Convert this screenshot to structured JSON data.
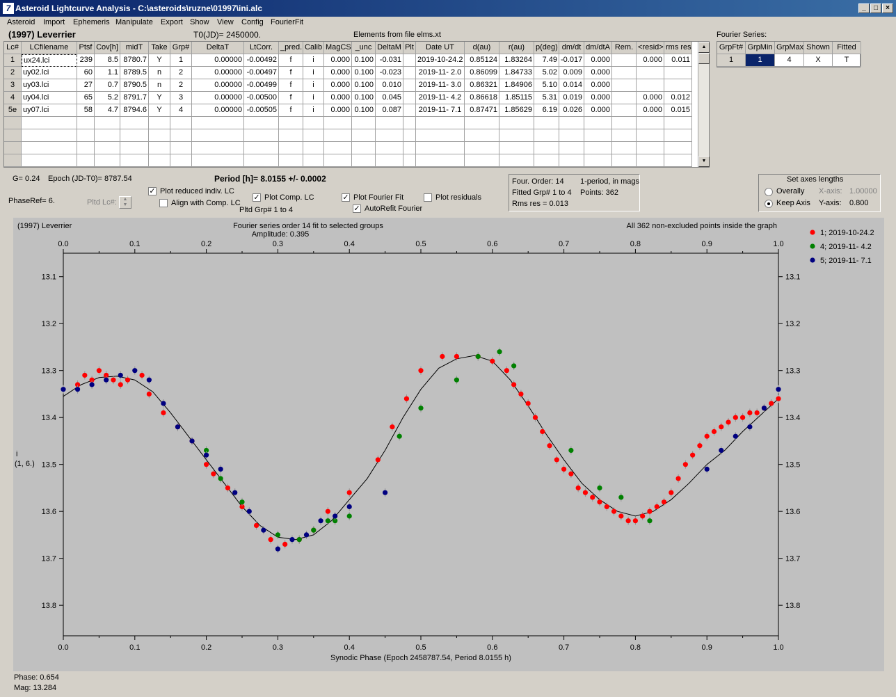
{
  "window": {
    "title": "Asteroid Lightcurve Analysis - C:\\asteroids\\ruzne\\01997\\ini.alc",
    "icon": "7"
  },
  "menu": [
    "Asteroid",
    "Import",
    "Ephemeris",
    "Manipulate",
    "Export",
    "Show",
    "View",
    "Config",
    "FourierFit"
  ],
  "header": {
    "asteroid_name": "(1997) Leverrier",
    "t0": "T0(JD)= 2450000.",
    "elements": "Elements from file elms.xt"
  },
  "lc_table": {
    "columns": [
      "Lc#",
      "LCfilename",
      "Ptsf",
      "Cov[h]",
      "midT",
      "Take",
      "Grp#",
      "DeltaT",
      "LtCorr.",
      "_pred.",
      "Calib",
      "MagCS",
      "_unc",
      "DeltaM",
      "Plt",
      "Date UT",
      "d(au)",
      "r(au)",
      "p(deg)",
      "dm/dt",
      "dm/dtA",
      "Rem.",
      "<resid>",
      "rms res"
    ],
    "rows": [
      [
        "1",
        "ux24.lci",
        "239",
        "8.5",
        "8780.7",
        "Y",
        "1",
        "0.00000",
        "-0.00492",
        "f",
        "i",
        "0.000",
        "0.100",
        "-0.031",
        "",
        "2019-10-24.2",
        "0.85124",
        "1.83264",
        "7.49",
        "-0.017",
        "0.000",
        "",
        "0.000",
        "0.011"
      ],
      [
        "2",
        "uy02.lci",
        "60",
        "1.1",
        "8789.5",
        "n",
        "2",
        "0.00000",
        "-0.00497",
        "f",
        "i",
        "0.000",
        "0.100",
        "-0.023",
        "",
        "2019-11- 2.0",
        "0.86099",
        "1.84733",
        "5.02",
        "0.009",
        "0.000",
        "",
        "",
        ""
      ],
      [
        "3",
        "uy03.lci",
        "27",
        "0.7",
        "8790.5",
        "n",
        "2",
        "0.00000",
        "-0.00499",
        "f",
        "i",
        "0.000",
        "0.100",
        "0.010",
        "",
        "2019-11- 3.0",
        "0.86321",
        "1.84906",
        "5.10",
        "0.014",
        "0.000",
        "",
        "",
        ""
      ],
      [
        "4",
        "uy04.lci",
        "65",
        "5.2",
        "8791.7",
        "Y",
        "3",
        "0.00000",
        "-0.00500",
        "f",
        "i",
        "0.000",
        "0.100",
        "0.045",
        "",
        "2019-11- 4.2",
        "0.86618",
        "1.85115",
        "5.31",
        "0.019",
        "0.000",
        "",
        "0.000",
        "0.012"
      ],
      [
        "5e",
        "uy07.lci",
        "58",
        "4.7",
        "8794.6",
        "Y",
        "4",
        "0.00000",
        "-0.00505",
        "f",
        "i",
        "0.000",
        "0.100",
        "0.087",
        "",
        "2019-11- 7.1",
        "0.87471",
        "1.85629",
        "6.19",
        "0.026",
        "0.000",
        "",
        "0.000",
        "0.015"
      ]
    ]
  },
  "fourier_panel": {
    "label": "Fourier Series:",
    "columns": [
      "GrpFt#",
      "GrpMin",
      "GrpMax",
      "Shown",
      "Fitted"
    ],
    "row": [
      "1",
      "1",
      "4",
      "X",
      "T"
    ]
  },
  "controls": {
    "g_param": "G= 0.24",
    "epoch": "Epoch (JD-T0)= 8787.54",
    "period": "Period [h]= 8.0155 +/- 0.0002",
    "phaseref": "PhaseRef= 6.",
    "pltd_lc": "Pltd Lc#:",
    "plot_reduced": "Plot reduced indiv. LC",
    "align_comp": "Align with Comp. LC",
    "plot_comp": "Plot Comp. LC",
    "pltd_grp": "Pltd Grp#  1   to   4",
    "plot_fourier": "Plot Fourier Fit",
    "autorefit": "AutoRefit Fourier",
    "plot_residuals": "Plot residuals"
  },
  "fit_info": {
    "order": "Four. Order: 14",
    "mode": "1-period, in mags",
    "fitted": "Fitted Grp# 1 to 4",
    "points": "Points: 362",
    "rms": "Rms res     = 0.013"
  },
  "axes_panel": {
    "title": "Set axes lengths",
    "overally": "Overally",
    "keep_axis": "Keep Axis",
    "x_label": "X-axis:",
    "x_value": "1.00000",
    "y_label": "Y-axis:",
    "y_value": "0.800"
  },
  "footer": {
    "phase": "Phase:  0.654",
    "mag": "Mag:    13.284"
  },
  "chart_data": {
    "type": "scatter",
    "title": "Fourier series order 14 fit to selected groups",
    "subtitle": "Amplitude: 0.395",
    "left_label": "(1997) Leverrier",
    "right_note": "All 362 non-excluded points inside the graph",
    "xlabel": "Synodic Phase (Epoch 2458787.54, Period 8.0155 h)",
    "ylabel": "i",
    "ylabel2": "(1, 6.)",
    "xlim": [
      0.0,
      1.0
    ],
    "ylim": [
      13.05,
      13.865
    ],
    "y_inverted": true,
    "xticks": [
      "0.0",
      "0.1",
      "0.2",
      "0.3",
      "0.4",
      "0.5",
      "0.6",
      "0.7",
      "0.8",
      "0.9",
      "1.0"
    ],
    "yticks": [
      "13.1",
      "13.2",
      "13.3",
      "13.4",
      "13.5",
      "13.6",
      "13.7",
      "13.8"
    ],
    "fourier_fit": {
      "x": [
        0.0,
        0.025,
        0.05,
        0.075,
        0.1,
        0.125,
        0.15,
        0.175,
        0.2,
        0.225,
        0.25,
        0.275,
        0.3,
        0.325,
        0.35,
        0.375,
        0.4,
        0.425,
        0.45,
        0.475,
        0.5,
        0.525,
        0.55,
        0.575,
        0.6,
        0.625,
        0.65,
        0.675,
        0.7,
        0.725,
        0.75,
        0.775,
        0.8,
        0.825,
        0.85,
        0.875,
        0.9,
        0.925,
        0.95,
        0.975,
        1.0
      ],
      "y": [
        13.355,
        13.33,
        13.315,
        13.312,
        13.32,
        13.345,
        13.39,
        13.44,
        13.49,
        13.54,
        13.59,
        13.63,
        13.655,
        13.66,
        13.65,
        13.62,
        13.575,
        13.53,
        13.47,
        13.4,
        13.34,
        13.295,
        13.275,
        13.268,
        13.28,
        13.32,
        13.375,
        13.435,
        13.49,
        13.54,
        13.575,
        13.6,
        13.61,
        13.6,
        13.575,
        13.54,
        13.5,
        13.47,
        13.43,
        13.395,
        13.36
      ]
    },
    "series": [
      {
        "name": "1; 2019-10-24.2",
        "color": "#ff0000",
        "x": [
          0.02,
          0.03,
          0.04,
          0.05,
          0.06,
          0.07,
          0.08,
          0.09,
          0.11,
          0.12,
          0.14,
          0.16,
          0.18,
          0.2,
          0.21,
          0.23,
          0.25,
          0.27,
          0.29,
          0.31,
          0.33,
          0.35,
          0.37,
          0.4,
          0.44,
          0.46,
          0.48,
          0.5,
          0.53,
          0.55,
          0.58,
          0.6,
          0.62,
          0.63,
          0.64,
          0.65,
          0.66,
          0.67,
          0.68,
          0.69,
          0.7,
          0.71,
          0.72,
          0.73,
          0.74,
          0.75,
          0.76,
          0.77,
          0.78,
          0.79,
          0.8,
          0.81,
          0.82,
          0.83,
          0.84,
          0.85,
          0.86,
          0.87,
          0.88,
          0.89,
          0.9,
          0.91,
          0.92,
          0.93,
          0.94,
          0.95,
          0.96,
          0.97,
          0.98,
          0.99,
          1.0
        ],
        "y": [
          13.33,
          13.31,
          13.32,
          13.3,
          13.31,
          13.32,
          13.33,
          13.32,
          13.31,
          13.35,
          13.39,
          13.42,
          13.45,
          13.5,
          13.52,
          13.55,
          13.59,
          13.63,
          13.66,
          13.67,
          13.66,
          13.64,
          13.6,
          13.56,
          13.49,
          13.42,
          13.36,
          13.3,
          13.27,
          13.27,
          13.27,
          13.28,
          13.3,
          13.33,
          13.35,
          13.37,
          13.4,
          13.43,
          13.46,
          13.49,
          13.51,
          13.52,
          13.55,
          13.56,
          13.57,
          13.58,
          13.59,
          13.6,
          13.61,
          13.62,
          13.62,
          13.61,
          13.6,
          13.59,
          13.58,
          13.56,
          13.53,
          13.5,
          13.48,
          13.46,
          13.44,
          13.43,
          13.42,
          13.41,
          13.4,
          13.4,
          13.39,
          13.39,
          13.38,
          13.37,
          13.36
        ]
      },
      {
        "name": "4; 2019-11- 4.2",
        "color": "#008000",
        "x": [
          0.2,
          0.22,
          0.25,
          0.3,
          0.33,
          0.35,
          0.37,
          0.38,
          0.4,
          0.47,
          0.5,
          0.55,
          0.58,
          0.61,
          0.63,
          0.71,
          0.75,
          0.78,
          0.82
        ],
        "y": [
          13.47,
          13.53,
          13.58,
          13.65,
          13.66,
          13.64,
          13.62,
          13.62,
          13.61,
          13.44,
          13.38,
          13.32,
          13.27,
          13.26,
          13.29,
          13.47,
          13.55,
          13.57,
          13.62
        ]
      },
      {
        "name": "5; 2019-11- 7.1",
        "color": "#000080",
        "x": [
          0.0,
          0.02,
          0.04,
          0.06,
          0.08,
          0.1,
          0.12,
          0.14,
          0.16,
          0.18,
          0.2,
          0.22,
          0.24,
          0.26,
          0.28,
          0.3,
          0.32,
          0.34,
          0.36,
          0.38,
          0.4,
          0.45,
          0.9,
          0.92,
          0.94,
          0.96,
          0.98,
          1.0
        ],
        "y": [
          13.34,
          13.34,
          13.33,
          13.32,
          13.31,
          13.3,
          13.32,
          13.37,
          13.42,
          13.45,
          13.48,
          13.51,
          13.56,
          13.6,
          13.64,
          13.68,
          13.66,
          13.65,
          13.62,
          13.61,
          13.59,
          13.56,
          13.51,
          13.47,
          13.44,
          13.42,
          13.38,
          13.34
        ]
      }
    ]
  }
}
